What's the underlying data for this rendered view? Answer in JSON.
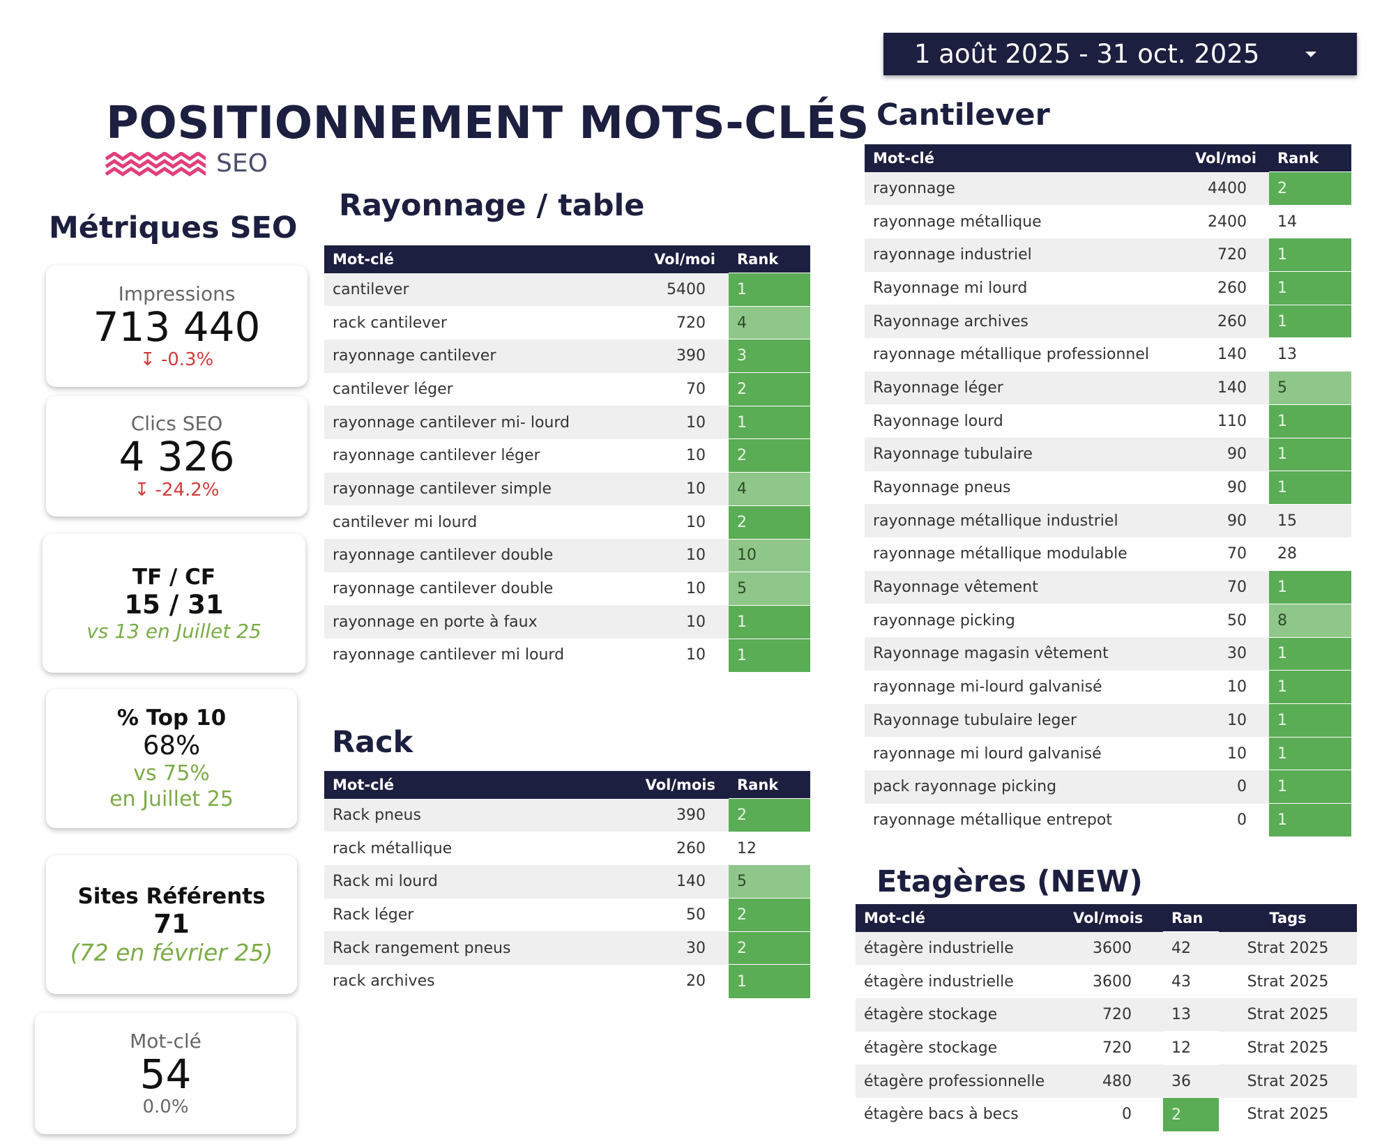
{
  "header": {
    "title": "POSITIONNEMENT MOTS-CLÉS",
    "subtitle": "SEO"
  },
  "date_range": "1 août 2025 - 31 oct. 2025",
  "metrics": {
    "title": "Métriques SEO",
    "cards": [
      {
        "label": "Impressions",
        "value": "713 440",
        "change": "-0.3%"
      },
      {
        "label": "Clics SEO",
        "value": "4 326",
        "change": "-24.2%"
      },
      {
        "label": "TF / CF",
        "value": "15 / 31",
        "note": "vs 13 en Juillet 25"
      },
      {
        "label": "% Top 10",
        "value": "68%",
        "note_lines": [
          "vs 75%",
          "en Juillet 25"
        ]
      },
      {
        "label": "Sites Référents",
        "value": "71",
        "note": "(72 en février 25)"
      },
      {
        "label": "Mot-clé",
        "value": "54",
        "change": "0.0%"
      }
    ]
  },
  "tables": [
    {
      "title": "Rayonnage / table",
      "columns": [
        "Mot-clé",
        "Vol/moi",
        "Rank"
      ],
      "rows": [
        [
          "cantilever",
          5400,
          1
        ],
        [
          "rack cantilever",
          720,
          4
        ],
        [
          "rayonnage cantilever",
          390,
          3
        ],
        [
          "cantilever léger",
          70,
          2
        ],
        [
          "rayonnage cantilever mi- lourd",
          10,
          1
        ],
        [
          "rayonnage cantilever léger",
          10,
          2
        ],
        [
          "rayonnage cantilever simple",
          10,
          4
        ],
        [
          "cantilever mi lourd",
          10,
          2
        ],
        [
          "rayonnage cantilever double",
          10,
          10
        ],
        [
          "rayonnage cantilever double",
          10,
          5
        ],
        [
          "rayonnage en porte à faux",
          10,
          1
        ],
        [
          "rayonnage cantilever mi lourd",
          10,
          1
        ]
      ]
    },
    {
      "title": "Rack",
      "columns": [
        "Mot-clé",
        "Vol/mois",
        "Rank"
      ],
      "rows": [
        [
          "Rack pneus",
          390,
          2
        ],
        [
          "rack métallique",
          260,
          12
        ],
        [
          "Rack mi lourd",
          140,
          5
        ],
        [
          "Rack léger",
          50,
          2
        ],
        [
          "Rack rangement pneus",
          30,
          2
        ],
        [
          "rack archives",
          20,
          1
        ]
      ]
    },
    {
      "title": "Cantilever",
      "columns": [
        "Mot-clé",
        "Vol/moi",
        "Rank"
      ],
      "rows": [
        [
          "rayonnage",
          4400,
          2
        ],
        [
          "rayonnage métallique",
          2400,
          14
        ],
        [
          "rayonnage industriel",
          720,
          1
        ],
        [
          "Rayonnage mi lourd",
          260,
          1
        ],
        [
          "Rayonnage archives",
          260,
          1
        ],
        [
          "rayonnage métallique professionnel",
          140,
          13
        ],
        [
          "Rayonnage léger",
          140,
          5
        ],
        [
          "Rayonnage lourd",
          110,
          1
        ],
        [
          "Rayonnage tubulaire",
          90,
          1
        ],
        [
          "Rayonnage pneus",
          90,
          1
        ],
        [
          "rayonnage métallique industriel",
          90,
          15
        ],
        [
          "rayonnage métallique modulable",
          70,
          28
        ],
        [
          "Rayonnage vêtement",
          70,
          1
        ],
        [
          "rayonnage picking",
          50,
          8
        ],
        [
          "Rayonnage magasin vêtement",
          30,
          1
        ],
        [
          "rayonnage mi-lourd galvanisé",
          10,
          1
        ],
        [
          "Rayonnage tubulaire leger",
          10,
          1
        ],
        [
          "rayonnage mi lourd galvanisé",
          10,
          1
        ],
        [
          "pack rayonnage picking",
          0,
          1
        ],
        [
          "rayonnage métallique entrepot",
          0,
          1
        ]
      ]
    },
    {
      "title": "Etagères (NEW)",
      "columns": [
        "Mot-clé",
        "Vol/mois",
        "Ran",
        "Tags"
      ],
      "rows": [
        [
          "étagère industrielle",
          3600,
          42,
          "Strat 2025"
        ],
        [
          "étagère industrielle",
          3600,
          43,
          "Strat 2025"
        ],
        [
          "étagère stockage",
          720,
          13,
          "Strat 2025"
        ],
        [
          "étagère stockage",
          720,
          12,
          "Strat 2025"
        ],
        [
          "étagère professionnelle",
          480,
          36,
          "Strat 2025"
        ],
        [
          "étagère bacs à becs",
          0,
          2,
          "Strat 2025"
        ]
      ]
    }
  ]
}
